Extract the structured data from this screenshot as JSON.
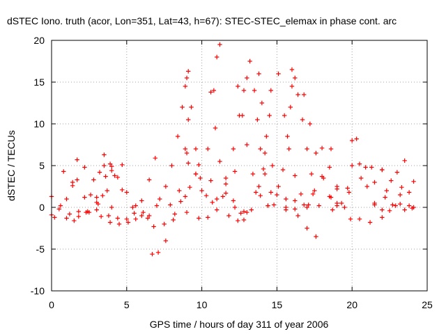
{
  "chart_data": {
    "type": "scatter",
    "title": "dSTEC Iono. truth (acor, Lon=351, Lat=43, h=67): STEC-STEC_elemax in phase cont. arc",
    "xlabel": "GPS time / hours of day 311 of year 2006",
    "ylabel": "dSTEC  / TECUs",
    "xlim": [
      0,
      25
    ],
    "ylim": [
      -10,
      20
    ],
    "xticks": [
      0,
      5,
      10,
      15,
      20,
      25
    ],
    "yticks": [
      -10,
      -5,
      0,
      5,
      10,
      15,
      20
    ],
    "grid": true,
    "marker": "+",
    "color": "#ff0000",
    "series": [
      {
        "x": [
          0.0,
          0.6,
          1.2,
          1.8,
          2.4,
          3.0
        ],
        "y": [
          1.3,
          0.2,
          -0.8,
          -1.1,
          -0.5,
          0.6
        ]
      },
      {
        "x": [
          0.0,
          0.5,
          1.0,
          1.4,
          1.7
        ],
        "y": [
          -0.9,
          -0.2,
          1.0,
          2.6,
          3.3
        ]
      },
      {
        "x": [
          0.8,
          1.4,
          2.2,
          3.0,
          3.8,
          4.4
        ],
        "y": [
          4.3,
          3.0,
          1.2,
          -0.3,
          -1.0,
          -1.3
        ]
      },
      {
        "x": [
          0.2,
          1.0,
          1.8,
          2.6,
          3.2,
          3.5
        ],
        "y": [
          -1.2,
          -1.3,
          -0.5,
          1.5,
          4.2,
          5.0
        ]
      },
      {
        "x": [
          1.7,
          2.2,
          2.8,
          3.4,
          4.0
        ],
        "y": [
          5.7,
          4.8,
          3.3,
          1.4,
          0.0
        ]
      },
      {
        "x": [
          1.5,
          2.3,
          3.0,
          3.6,
          4.0
        ],
        "y": [
          -1.6,
          -0.6,
          1.2,
          3.7,
          4.9
        ]
      },
      {
        "x": [
          3.5,
          3.9,
          4.4,
          5.0,
          5.6,
          6.1
        ],
        "y": [
          6.3,
          5.2,
          3.6,
          1.8,
          0.2,
          -0.6
        ]
      },
      {
        "x": [
          2.5,
          3.1,
          3.7,
          4.2,
          4.7
        ],
        "y": [
          -0.6,
          0.4,
          2.0,
          3.8,
          5.1
        ]
      },
      {
        "x": [
          4.0,
          4.7,
          5.4,
          6.0,
          6.4
        ],
        "y": [
          4.4,
          2.1,
          0.0,
          -1.0,
          -1.3
        ]
      },
      {
        "x": [
          3.3,
          3.9,
          4.5,
          5.1,
          5.6
        ],
        "y": [
          -1.1,
          -1.8,
          -2.0,
          -1.8,
          -1.4
        ]
      },
      {
        "x": [
          5.0,
          5.5,
          6.0,
          6.5,
          6.9
        ],
        "y": [
          -1.4,
          -0.7,
          0.8,
          3.3,
          5.9
        ]
      },
      {
        "x": [
          6.7,
          7.1,
          7.6,
          8.1,
          8.5,
          8.9,
          9.1
        ],
        "y": [
          -5.6,
          -5.4,
          -4.0,
          -1.5,
          2.0,
          7.0,
          10.5
        ]
      },
      {
        "x": [
          6.5,
          7.0,
          7.6,
          8.0,
          8.4,
          8.7,
          8.9,
          9.0
        ],
        "y": [
          -1.0,
          0.2,
          2.5,
          5.0,
          8.5,
          12.0,
          14.5,
          15.5
        ]
      },
      {
        "x": [
          6.8,
          7.5,
          8.2,
          8.9,
          9.6
        ],
        "y": [
          -2.3,
          -2.0,
          -0.8,
          1.3,
          4.0
        ]
      },
      {
        "x": [
          7.2,
          7.9,
          8.6,
          9.2,
          9.6,
          9.1
        ],
        "y": [
          1.0,
          0.3,
          0.7,
          2.4,
          4.0,
          5.3
        ]
      },
      {
        "x": [
          9.1,
          9.3,
          9.6,
          9.9,
          10.3,
          10.7
        ],
        "y": [
          16.3,
          12.0,
          7.0,
          3.5,
          1.4,
          0.6
        ]
      },
      {
        "x": [
          9.0,
          9.8,
          10.6,
          11.4,
          12.2,
          12.8
        ],
        "y": [
          6.5,
          5.1,
          3.2,
          1.3,
          0.0,
          -0.5
        ]
      },
      {
        "x": [
          9.0,
          9.8,
          10.4,
          11.0,
          11.6,
          12.2
        ],
        "y": [
          -0.6,
          -1.3,
          -1.2,
          -0.3,
          1.7,
          4.3
        ]
      },
      {
        "x": [
          10.0,
          10.4,
          10.8,
          11.0,
          11.2
        ],
        "y": [
          2.0,
          7.0,
          14.0,
          18.0,
          19.5
        ]
      },
      {
        "x": [
          10.6,
          10.9,
          11.2,
          11.6,
          12.1,
          12.6
        ],
        "y": [
          13.8,
          9.5,
          5.5,
          2.8,
          0.8,
          -0.7
        ]
      },
      {
        "x": [
          11.0,
          11.6,
          12.1,
          12.5,
          12.8,
          13.0
        ],
        "y": [
          1.0,
          3.5,
          7.0,
          11.0,
          14.0,
          15.5
        ]
      },
      {
        "x": [
          12.4,
          12.7,
          13.0,
          13.4,
          13.9,
          14.4
        ],
        "y": [
          14.5,
          11.0,
          7.5,
          4.0,
          1.4,
          0.2
        ]
      },
      {
        "x": [
          11.8,
          12.4,
          13.0,
          13.6,
          14.1
        ],
        "y": [
          -1.0,
          -1.6,
          -0.6,
          1.8,
          4.6
        ]
      },
      {
        "x": [
          13.2,
          13.5,
          13.7,
          13.9,
          14.2,
          14.6
        ],
        "y": [
          17.5,
          14.0,
          10.5,
          7.0,
          4.0,
          1.8
        ]
      },
      {
        "x": [
          12.8,
          13.3,
          13.8,
          14.2,
          14.5,
          14.6
        ],
        "y": [
          -1.5,
          -0.3,
          2.5,
          6.5,
          11.0,
          14.0
        ]
      },
      {
        "x": [
          13.8,
          14.0,
          14.3,
          14.7,
          15.1,
          15.6
        ],
        "y": [
          16.0,
          12.5,
          8.5,
          5.0,
          2.5,
          1.0
        ]
      },
      {
        "x": [
          14.4,
          15.0,
          15.4,
          15.7,
          15.9,
          16.0
        ],
        "y": [
          0.2,
          1.5,
          4.5,
          8.5,
          12.0,
          14.5
        ]
      },
      {
        "x": [
          14.8,
          15.6,
          16.4,
          17.0,
          17.6
        ],
        "y": [
          0.3,
          0.0,
          -1.0,
          -2.5,
          -3.5
        ]
      },
      {
        "x": [
          15.1,
          15.5,
          15.8,
          16.2,
          16.6,
          17.1
        ],
        "y": [
          16.0,
          11.0,
          7.0,
          3.8,
          1.6,
          0.3
        ]
      },
      {
        "x": [
          16.0,
          16.2,
          16.4,
          16.7,
          17.0,
          17.3,
          17.5
        ],
        "y": [
          16.5,
          15.5,
          13.5,
          10.5,
          7.0,
          4.0,
          2.0
        ]
      },
      {
        "x": [
          16.8,
          17.2,
          17.6,
          18.1,
          18.6,
          19.0
        ],
        "y": [
          13.5,
          10.0,
          6.5,
          3.5,
          1.2,
          0.2
        ]
      },
      {
        "x": [
          15.6,
          16.2,
          16.8,
          17.4,
          18.0,
          18.6
        ],
        "y": [
          -0.3,
          -0.2,
          0.3,
          1.6,
          3.7,
          7.0
        ]
      },
      {
        "x": [
          16.2,
          17.0,
          17.8,
          18.5,
          19.0
        ],
        "y": [
          0.8,
          0.0,
          0.2,
          1.3,
          2.5
        ]
      },
      {
        "x": [
          18.0,
          18.5,
          19.0,
          19.5,
          19.9
        ],
        "y": [
          7.1,
          4.8,
          2.2,
          0.0,
          -1.4
        ]
      },
      {
        "x": [
          18.7,
          19.3,
          19.7,
          20.0,
          20.3
        ],
        "y": [
          -0.3,
          0.5,
          2.3,
          5.0,
          8.2
        ]
      },
      {
        "x": [
          20.0,
          20.5,
          21.0,
          21.5,
          22.0
        ],
        "y": [
          8.0,
          5.2,
          2.5,
          0.5,
          -0.3
        ]
      },
      {
        "x": [
          19.0,
          19.8,
          20.6,
          21.3,
          22.0
        ],
        "y": [
          0.5,
          1.8,
          3.5,
          4.8,
          4.5
        ]
      },
      {
        "x": [
          20.9,
          21.5,
          22.2,
          22.9,
          23.5,
          24.0
        ],
        "y": [
          4.8,
          3.0,
          1.2,
          0.2,
          -0.3,
          -0.1
        ]
      },
      {
        "x": [
          20.5,
          21.2,
          22.0,
          22.7,
          23.3
        ],
        "y": [
          -1.4,
          -1.8,
          -1.2,
          0.3,
          2.4
        ]
      },
      {
        "x": [
          21.5,
          22.3,
          23.0,
          23.5
        ],
        "y": [
          0.3,
          2.0,
          4.2,
          5.6
        ]
      },
      {
        "x": [
          22.0,
          22.6,
          23.2,
          23.8,
          24.1
        ],
        "y": [
          4.5,
          3.2,
          1.5,
          0.2,
          0.0
        ]
      },
      {
        "x": [
          22.5,
          23.2,
          23.8,
          24.1
        ],
        "y": [
          -0.4,
          0.4,
          1.8,
          3.1
        ]
      }
    ]
  }
}
